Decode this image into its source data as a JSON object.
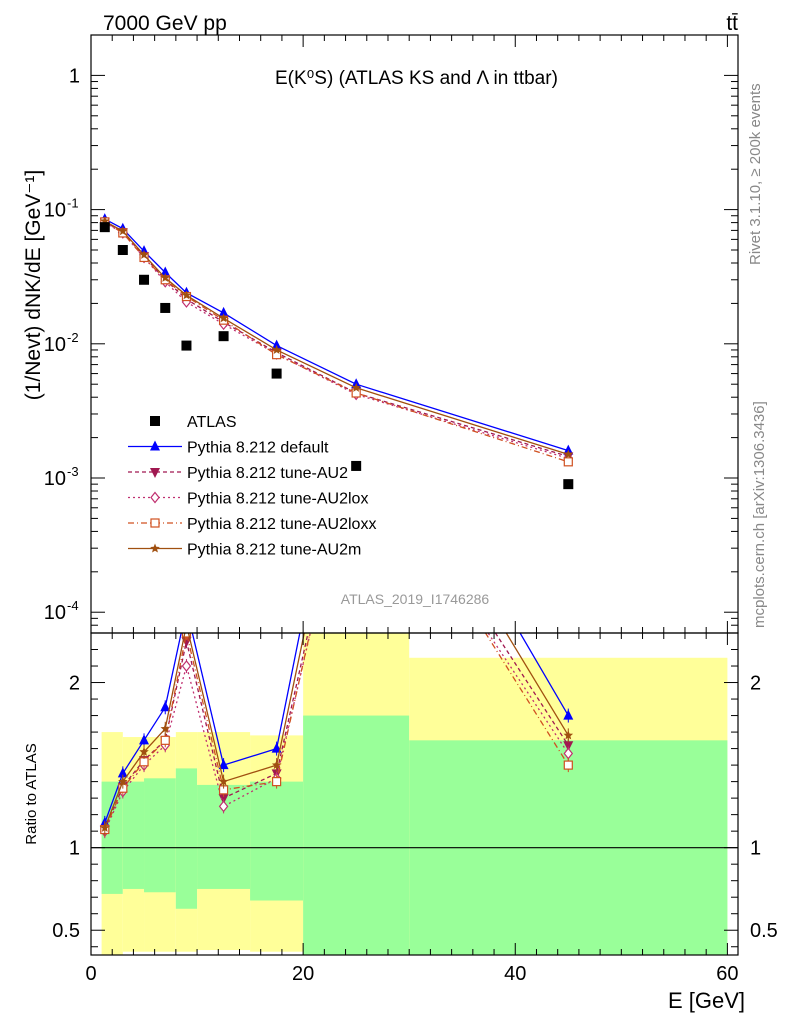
{
  "header": {
    "energy_label": "7000 GeV pp",
    "process_label": "tt̄"
  },
  "side_labels": {
    "rivet": "Rivet 3.1.10, ≥ 200k events",
    "mcplots": "mcplots.cern.ch [arXiv:1306.3436]"
  },
  "chart_data": {
    "type": "line",
    "title": "E(K⁰S) (ATLAS KS and Λ in ttbar)",
    "analysis_id": "ATLAS_2019_I1746286",
    "xlabel": "E [GeV]",
    "ylabel": "(1/Nevt) dNK/dE [GeV⁻¹]",
    "ratio_ylabel": "Ratio to ATLAS",
    "xlim": [
      0,
      61
    ],
    "ylim_log": [
      7e-05,
      2
    ],
    "ratio_ylim": [
      0.35,
      2.3
    ],
    "x_ticks": [
      0,
      20,
      40,
      60
    ],
    "y_ticks": [
      {
        "value": 1,
        "label": "1",
        "exp": ""
      },
      {
        "value": 0.1,
        "label": "10",
        "exp": "-1"
      },
      {
        "value": 0.01,
        "label": "10",
        "exp": "-2"
      },
      {
        "value": 0.001,
        "label": "10",
        "exp": "-3"
      },
      {
        "value": 0.0001,
        "label": "10",
        "exp": "-4"
      }
    ],
    "ratio_ticks": [
      0.5,
      1,
      2
    ],
    "legend_position": "lower-left",
    "x": [
      1.3,
      3.0,
      5.0,
      7.0,
      9.0,
      12.5,
      17.5,
      25.0,
      45.0
    ],
    "data": {
      "name": "ATLAS",
      "values": [
        0.074,
        0.05,
        0.03,
        0.0185,
        0.0097,
        0.0114,
        0.006,
        0.00123,
        0.0009
      ]
    },
    "uncertainty_bands": {
      "bins": [
        [
          1,
          3,
          0.72,
          1.4,
          0.35,
          1.7
        ],
        [
          3,
          5,
          0.75,
          1.4,
          0.37,
          1.67
        ],
        [
          5,
          8,
          0.73,
          1.42,
          0.37,
          1.67
        ],
        [
          8,
          10,
          0.63,
          1.48,
          0.37,
          1.7
        ],
        [
          10,
          15,
          0.75,
          1.38,
          0.38,
          1.7
        ],
        [
          15,
          20,
          0.68,
          1.4,
          0.37,
          1.68
        ],
        [
          20,
          30,
          0.35,
          1.8,
          0.35,
          2.35
        ],
        [
          30,
          60,
          0.35,
          1.65,
          0.37,
          2.15
        ]
      ],
      "columns": [
        "x_low",
        "x_high",
        "inner_low",
        "inner_high",
        "outer_low",
        "outer_high"
      ]
    },
    "series": [
      {
        "name": "Pythia 8.212 default",
        "color": "#0000ff",
        "marker": "triangle-up",
        "dash": "",
        "values": [
          0.085,
          0.072,
          0.049,
          0.034,
          0.024,
          0.017,
          0.0097,
          0.005,
          0.0016
        ],
        "ratio": [
          1.15,
          1.45,
          1.65,
          1.85,
          2.45,
          1.5,
          1.6,
          4.0,
          1.8
        ]
      },
      {
        "name": "Pythia 8.212 tune-AU2",
        "color": "#a01850",
        "marker": "triangle-down",
        "dash": "4,3",
        "values": [
          0.081,
          0.068,
          0.045,
          0.03,
          0.0215,
          0.0145,
          0.0086,
          0.0043,
          0.00145
        ],
        "ratio": [
          1.11,
          1.37,
          1.53,
          1.65,
          2.25,
          1.3,
          1.45,
          3.6,
          1.62
        ]
      },
      {
        "name": "Pythia 8.212 tune-AU2lox",
        "color": "#c03070",
        "marker": "diamond",
        "dash": "2,3",
        "values": [
          0.08,
          0.067,
          0.044,
          0.029,
          0.0205,
          0.014,
          0.0084,
          0.0042,
          0.0014
        ],
        "ratio": [
          1.1,
          1.34,
          1.5,
          1.62,
          2.1,
          1.25,
          1.42,
          3.5,
          1.57
        ]
      },
      {
        "name": "Pythia 8.212 tune-AU2loxx",
        "color": "#d05020",
        "marker": "square-open",
        "dash": "6,3,1,3",
        "values": [
          0.081,
          0.067,
          0.044,
          0.03,
          0.0225,
          0.015,
          0.0083,
          0.0043,
          0.00132
        ],
        "ratio": [
          1.11,
          1.36,
          1.52,
          1.65,
          2.3,
          1.35,
          1.4,
          3.55,
          1.5
        ]
      },
      {
        "name": "Pythia 8.212 tune-AU2m",
        "color": "#a05010",
        "marker": "star",
        "dash": "",
        "values": [
          0.082,
          0.069,
          0.046,
          0.031,
          0.023,
          0.0155,
          0.009,
          0.0047,
          0.0015
        ],
        "ratio": [
          1.12,
          1.4,
          1.58,
          1.72,
          2.35,
          1.4,
          1.5,
          3.8,
          1.68
        ]
      }
    ]
  }
}
